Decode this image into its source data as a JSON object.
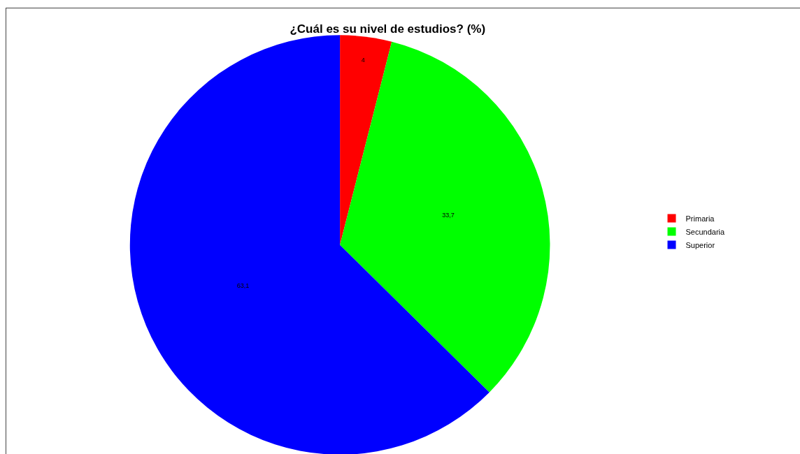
{
  "chart_data": {
    "type": "pie",
    "title": "¿Cuál es su nivel de estudios? (%)",
    "categories": [
      "Primaria",
      "Secundaria",
      "Superior"
    ],
    "values": [
      4,
      33.7,
      63.1
    ],
    "value_labels": [
      "4",
      "33,7",
      "63,1"
    ],
    "colors": [
      "#ff0000",
      "#00ff00",
      "#0000ff"
    ],
    "legend": "right"
  }
}
